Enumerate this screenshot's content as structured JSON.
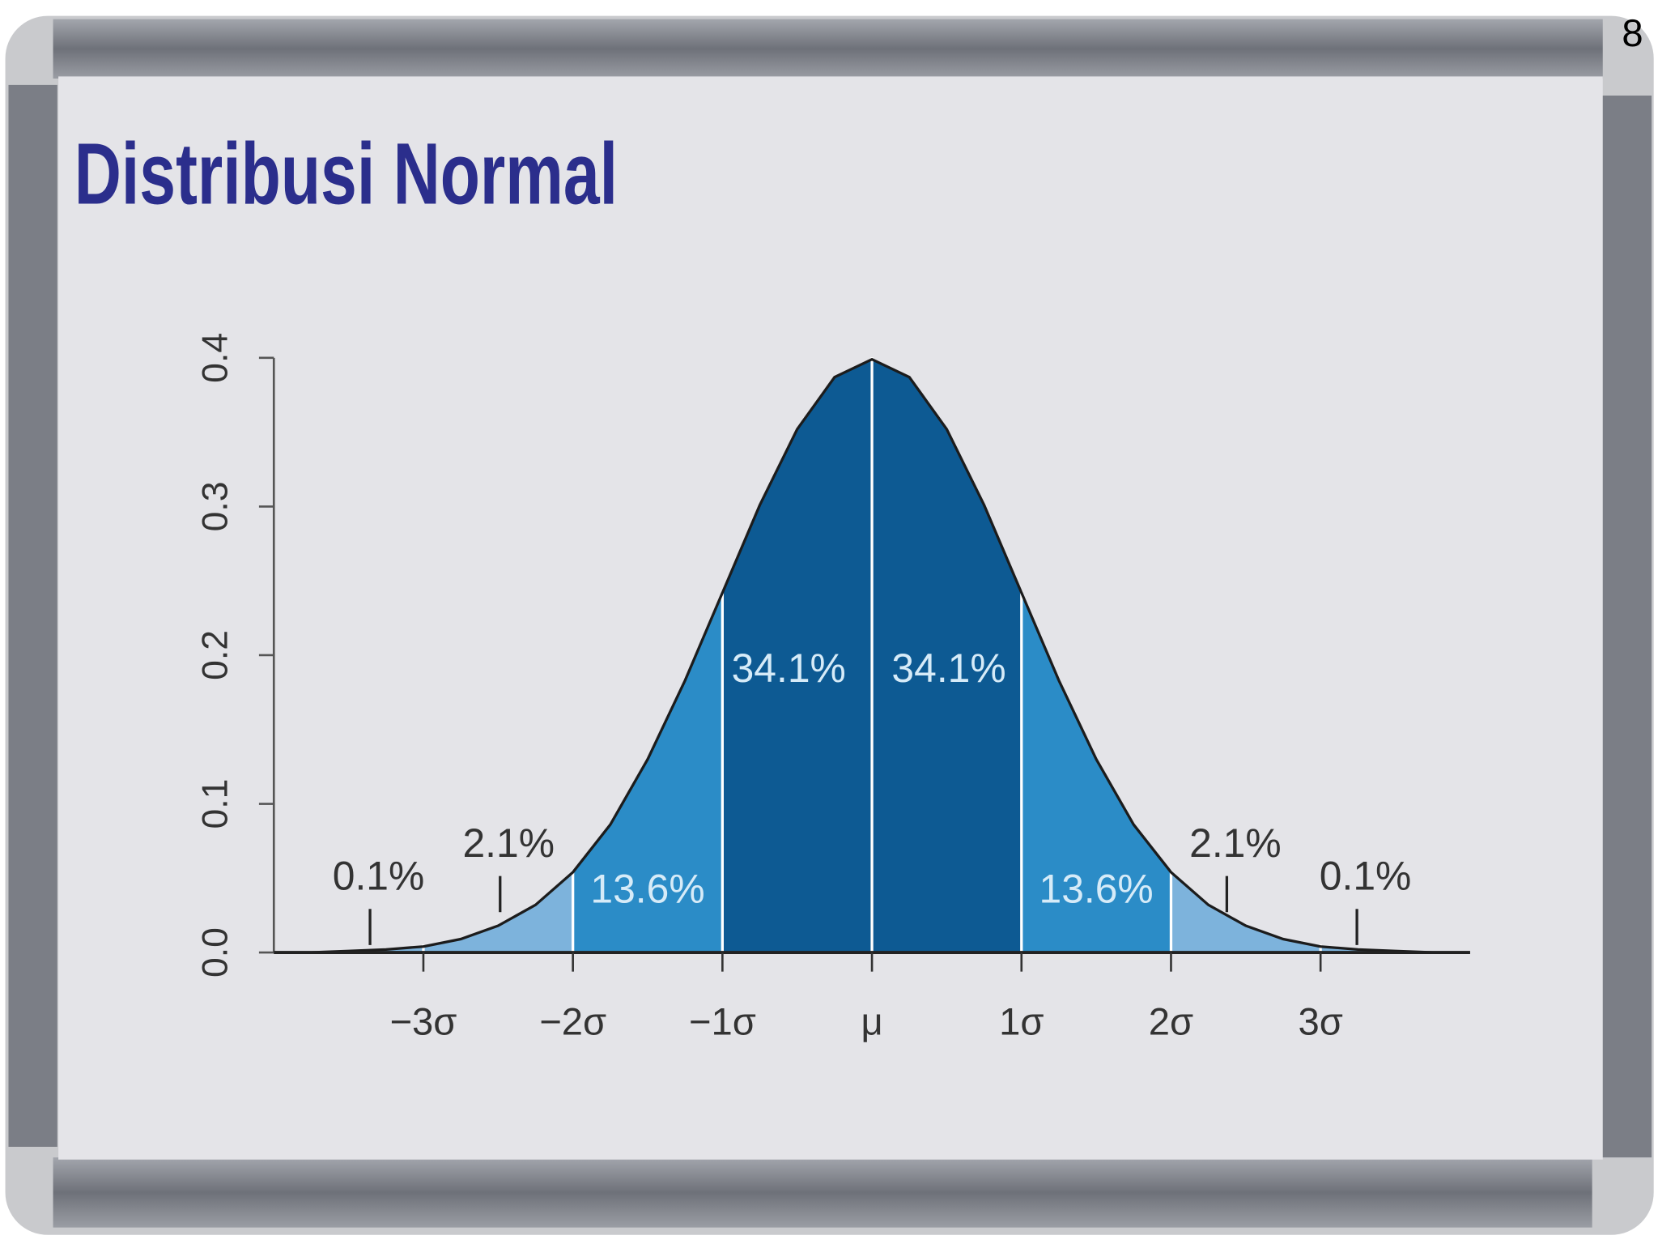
{
  "page_number": "8",
  "chart_data": {
    "type": "area",
    "title": "Distribusi Normal",
    "x": [
      -4,
      -3.75,
      -3.5,
      -3.25,
      -3,
      -2.75,
      -2.5,
      -2.25,
      -2,
      -1.75,
      -1.5,
      -1.25,
      -1,
      -0.75,
      -0.5,
      -0.25,
      0,
      0.25,
      0.5,
      0.75,
      1,
      1.25,
      1.5,
      1.75,
      2,
      2.25,
      2.5,
      2.75,
      3,
      3.25,
      3.5,
      3.75,
      4
    ],
    "values": [
      0,
      0,
      0.001,
      0.002,
      0.004,
      0.009,
      0.018,
      0.032,
      0.054,
      0.086,
      0.13,
      0.183,
      0.242,
      0.301,
      0.352,
      0.387,
      0.399,
      0.387,
      0.352,
      0.301,
      0.242,
      0.183,
      0.13,
      0.086,
      0.054,
      0.032,
      0.018,
      0.009,
      0.004,
      0.002,
      0.001,
      0,
      0
    ],
    "xlim": [
      -4,
      4
    ],
    "ylim": [
      0,
      0.4
    ],
    "xticks": [
      {
        "value": -3,
        "label": "−3σ"
      },
      {
        "value": -2,
        "label": "−2σ"
      },
      {
        "value": -1,
        "label": "−1σ"
      },
      {
        "value": 0,
        "label": "μ"
      },
      {
        "value": 1,
        "label": "1σ"
      },
      {
        "value": 2,
        "label": "2σ"
      },
      {
        "value": 3,
        "label": "3σ"
      }
    ],
    "yticks": [
      {
        "value": 0,
        "label": "0.0"
      },
      0.1,
      0.2,
      0.3,
      0.4
    ],
    "regions": {
      "edges": [
        -4,
        -3,
        -2,
        -1,
        0,
        1,
        2,
        3,
        4
      ],
      "values": [
        0.1,
        2.1,
        13.6,
        34.1,
        34.1,
        13.6,
        2.1,
        0.1
      ],
      "value_labels": [
        "0.1%",
        "2.1%",
        "13.6%",
        "34.1%",
        "34.1%",
        "13.6%",
        "2.1%",
        "0.1%"
      ],
      "colors": [
        "#7db3dc",
        "#7db3dc",
        "#2b8cc7",
        "#0d5a93",
        "#0d5a93",
        "#2b8cc7",
        "#7db3dc",
        "#7db3dc"
      ]
    }
  }
}
